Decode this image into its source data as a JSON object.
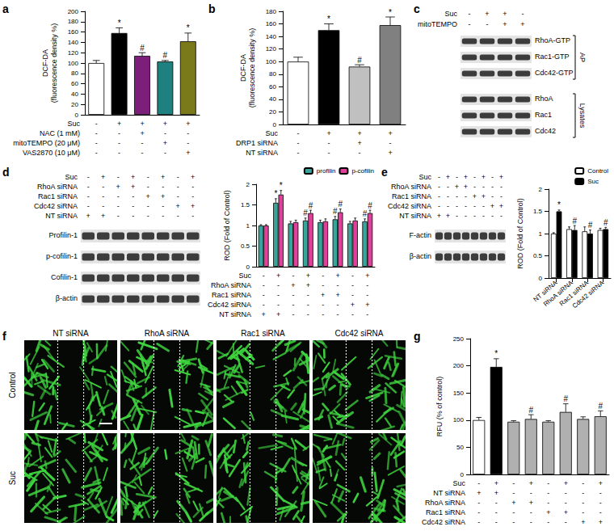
{
  "chart_data": [
    {
      "type": "bar",
      "panel": "a",
      "ylabel": "DCF-DA\n(fluorescence density %)",
      "conditions": [
        {
          "name": "Suc",
          "signs": [
            "-",
            "+",
            "+",
            "+",
            "+"
          ]
        },
        {
          "name": "NAC (1 mM)",
          "signs": [
            "-",
            "-",
            "+",
            "-",
            "-"
          ]
        },
        {
          "name": "mitoTEMPO (20 μM)",
          "signs": [
            "-",
            "-",
            "-",
            "+",
            "-"
          ]
        },
        {
          "name": "VAS2870 (10 μM)",
          "signs": [
            "-",
            "-",
            "-",
            "-",
            "+"
          ]
        }
      ],
      "values": [
        100,
        158,
        114,
        103,
        142
      ],
      "errors": [
        5,
        10,
        6,
        2,
        16
      ],
      "annotations": [
        null,
        "*",
        "#",
        "#",
        "*"
      ],
      "colors": [
        "#ffffff",
        "#000000",
        "#7b1f7b",
        "#1f8080",
        "#7a7a1a"
      ],
      "ylim": [
        0,
        200
      ],
      "yticks": [
        0,
        20,
        40,
        60,
        80,
        100,
        120,
        140,
        160,
        180,
        200
      ],
      "grid": false
    },
    {
      "type": "bar",
      "panel": "b",
      "ylabel": "DCF-DA\n(fluorescence density %)",
      "conditions": [
        {
          "name": "Suc",
          "signs": [
            "-",
            "+",
            "+",
            "+"
          ]
        },
        {
          "name": "DRP1 siRNA",
          "signs": [
            "-",
            "-",
            "+",
            "-"
          ]
        },
        {
          "name": "NT siRNA",
          "signs": [
            "-",
            "-",
            "-",
            "+"
          ]
        }
      ],
      "values": [
        100,
        150,
        92,
        158
      ],
      "errors": [
        7,
        10,
        3,
        13
      ],
      "annotations": [
        null,
        "*",
        "#",
        "*"
      ],
      "colors": [
        "#ffffff",
        "#000000",
        "#c0c0c0",
        "#808080"
      ],
      "ylim": [
        0,
        180
      ],
      "yticks": [
        0,
        20,
        40,
        60,
        80,
        100,
        120,
        140,
        160,
        180
      ],
      "grid": false
    },
    {
      "type": "bar",
      "ylabel": "ROD (Fold of Control)",
      "conditions": [
        {
          "name": "Suc",
          "signs": [
            "-",
            "+",
            "-",
            "+",
            "-",
            "+",
            "-",
            "+"
          ]
        },
        {
          "name": "RhoA siRNA",
          "signs": [
            "-",
            "-",
            "+",
            "+",
            "-",
            "-",
            "-",
            "-"
          ]
        },
        {
          "name": "Rac1 siRNA",
          "signs": [
            "-",
            "-",
            "-",
            "-",
            "+",
            "+",
            "-",
            "-"
          ]
        },
        {
          "name": "Cdc42 siRNA",
          "signs": [
            "-",
            "-",
            "-",
            "-",
            "-",
            "-",
            "+",
            "+"
          ]
        },
        {
          "name": "NT siRNA",
          "signs": [
            "+",
            "+",
            "-",
            "-",
            "-",
            "-",
            "-",
            "-"
          ]
        }
      ],
      "series": [
        {
          "name": "profilin",
          "color": "#3aa39a",
          "values": [
            1,
            1.55,
            1.05,
            1.12,
            1.08,
            1.15,
            1.05,
            1.1
          ],
          "errors": [
            0.02,
            0.1,
            0.05,
            0.06,
            0.05,
            0.07,
            0.05,
            0.06
          ],
          "annotations": [
            null,
            "*",
            null,
            "#",
            null,
            "#",
            null,
            "#"
          ]
        },
        {
          "name": "p-cofilin",
          "color": "#e0409a",
          "values": [
            1,
            1.75,
            1.08,
            1.3,
            1.1,
            1.32,
            1.12,
            1.3
          ],
          "errors": [
            0.02,
            0.1,
            0.05,
            0.07,
            0.06,
            0.08,
            0.06,
            0.07
          ],
          "annotations": [
            null,
            "*",
            null,
            "#",
            null,
            "#",
            null,
            "#"
          ]
        }
      ],
      "legend": "top-right",
      "ylim": [
        0,
        2
      ],
      "yticks": [
        0,
        0.5,
        1,
        1.5,
        2
      ],
      "grid": false
    },
    {
      "type": "bar",
      "ylabel": "ROD (Fold of Control)",
      "categories": [
        "NT siRNA",
        "RhoA siRNA",
        "Rac1 siRNA",
        "Cdc42 siRNA"
      ],
      "series": [
        {
          "name": "Control",
          "color": "#ffffff",
          "values": [
            1,
            1.1,
            1.05,
            1.08
          ],
          "errors": [
            0.02,
            0.05,
            0.1,
            0.04
          ],
          "annotations": [
            null,
            null,
            null,
            null
          ]
        },
        {
          "name": "Suc",
          "color": "#000000",
          "values": [
            1.5,
            1.08,
            1.0,
            1.1
          ],
          "errors": [
            0.03,
            0.1,
            0.08,
            0.04
          ],
          "annotations": [
            "*",
            "#",
            "#",
            "#"
          ]
        }
      ],
      "legend": "top-right",
      "ylim": [
        0,
        2
      ],
      "yticks": [
        0,
        0.5,
        1,
        1.5,
        2
      ],
      "grid": false
    },
    {
      "type": "bar",
      "panel": "g",
      "ylabel": "RFU (% of control)",
      "conditions": [
        {
          "name": "Suc",
          "signs": [
            "-",
            "+",
            "-",
            "+",
            "-",
            "+",
            "-",
            "+"
          ]
        },
        {
          "name": "NT siRNA",
          "signs": [
            "+",
            "+",
            "-",
            "-",
            "-",
            "-",
            "-",
            "-"
          ]
        },
        {
          "name": "RhoA siRNA",
          "signs": [
            "-",
            "-",
            "+",
            "+",
            "-",
            "-",
            "-",
            "-"
          ]
        },
        {
          "name": "Rac1 siRNA",
          "signs": [
            "-",
            "-",
            "-",
            "-",
            "+",
            "+",
            "-",
            "-"
          ]
        },
        {
          "name": "Cdc42 siRNA",
          "signs": [
            "-",
            "-",
            "-",
            "-",
            "-",
            "-",
            "+",
            "+"
          ]
        }
      ],
      "values": [
        100,
        198,
        97,
        102,
        97,
        115,
        102,
        107
      ],
      "errors": [
        5,
        15,
        2,
        8,
        2,
        15,
        4,
        10
      ],
      "annotations": [
        null,
        "*",
        null,
        "#",
        null,
        "#",
        null,
        "#"
      ],
      "colors": [
        "#ffffff",
        "#000000",
        "#b0b0b0",
        "#b0b0b0",
        "#b0b0b0",
        "#b0b0b0",
        "#b0b0b0",
        "#b0b0b0"
      ],
      "ylim": [
        0,
        250
      ],
      "yticks": [
        0,
        50,
        100,
        150,
        200,
        250
      ],
      "grid": false
    }
  ],
  "blots": [
    {
      "panel": "c",
      "conditions": [
        {
          "name": "Suc",
          "signs": [
            "-",
            "+",
            "+",
            "-"
          ]
        },
        {
          "name": "mitoTEMPO",
          "signs": [
            "-",
            "-",
            "+",
            "+"
          ]
        }
      ],
      "bands": [
        "RhoA-GTP",
        "Rac1-GTP",
        "Cdc42-GTP",
        "RhoA",
        "Rac1",
        "Cdc42"
      ],
      "groups": [
        {
          "label": "AP",
          "from": "RhoA-GTP",
          "to": "Cdc42-GTP"
        },
        {
          "label": "Lysates",
          "from": "RhoA",
          "to": "Cdc42"
        }
      ]
    },
    {
      "panel": "d",
      "conditions": [
        {
          "name": "Suc",
          "signs": [
            "-",
            "+",
            "-",
            "+",
            "-",
            "+",
            "-",
            "+"
          ]
        },
        {
          "name": "RhoA siRNA",
          "signs": [
            "-",
            "-",
            "+",
            "+",
            "-",
            "-",
            "-",
            "-"
          ]
        },
        {
          "name": "Rac1 siRNA",
          "signs": [
            "-",
            "-",
            "-",
            "-",
            "+",
            "+",
            "-",
            "-"
          ]
        },
        {
          "name": "Cdc42 siRNA",
          "signs": [
            "-",
            "-",
            "-",
            "-",
            "-",
            "-",
            "+",
            "+"
          ]
        },
        {
          "name": "NT siRNA",
          "signs": [
            "+",
            "+",
            "-",
            "-",
            "-",
            "-",
            "-",
            "-"
          ]
        }
      ],
      "bands": [
        "Profilin-1",
        "p-cofilin-1",
        "Cofilin-1",
        "β-actin"
      ]
    },
    {
      "panel": "e",
      "conditions": [
        {
          "name": "Suc",
          "signs": [
            "-",
            "+",
            "-",
            "+",
            "-",
            "+",
            "-",
            "+"
          ]
        },
        {
          "name": "RhoA siRNA",
          "signs": [
            "-",
            "-",
            "+",
            "+",
            "-",
            "-",
            "-",
            "-"
          ]
        },
        {
          "name": "Rac1 siRNA",
          "signs": [
            "-",
            "-",
            "-",
            "-",
            "+",
            "+",
            "-",
            "-"
          ]
        },
        {
          "name": "Cdc42 siRNA",
          "signs": [
            "-",
            "-",
            "-",
            "-",
            "-",
            "-",
            "+",
            "+"
          ]
        },
        {
          "name": "NT siRNA",
          "signs": [
            "+",
            "+",
            "-",
            "-",
            "-",
            "-",
            "-",
            "-"
          ]
        }
      ],
      "bands": [
        "F-actin",
        "β-actin"
      ]
    }
  ],
  "micrograph": {
    "panel": "f",
    "columns": [
      "NT siRNA",
      "RhoA siRNA",
      "Rac1 siRNA",
      "Cdc42 siRNA"
    ],
    "rows": [
      "Control",
      "Suc"
    ]
  }
}
